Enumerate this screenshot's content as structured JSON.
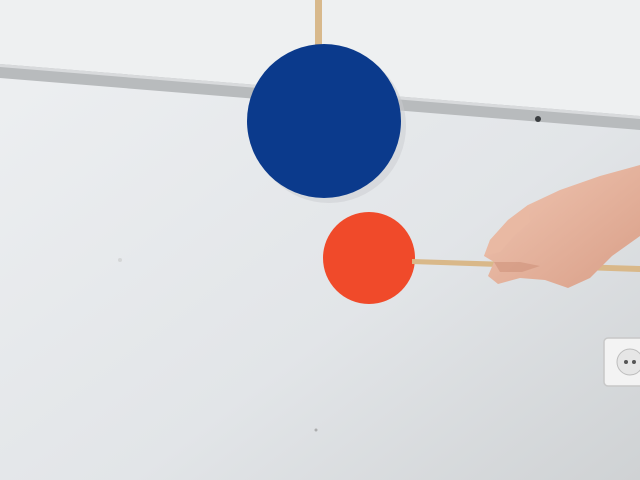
{
  "scene": {
    "description_kind": "photo",
    "colors": {
      "wall": "#e2e5e8",
      "blue_disc": "#0b3a8c",
      "red_disc": "#f04a2a",
      "stick": "#d9b889",
      "skin": "#e7b7a0",
      "trim": "#b9bcbe",
      "outlet": "#f2f2f2"
    }
  }
}
